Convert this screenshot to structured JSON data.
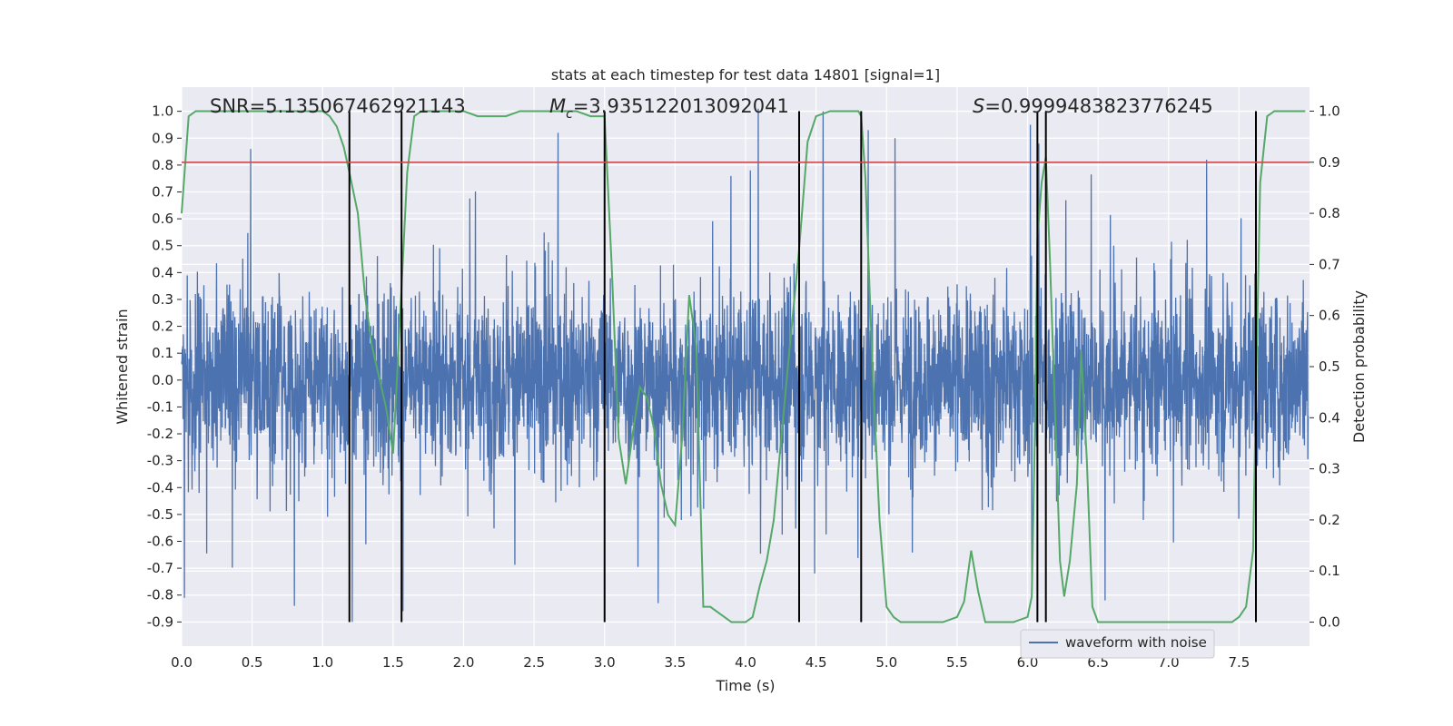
{
  "chart_data": {
    "type": "line",
    "title": "stats at each timestep for test data 14801 [signal=1]",
    "xlabel": "Time (s)",
    "ylabel": "Whitened strain",
    "y2label": "Detection probability",
    "xlim": [
      0.0,
      8.0
    ],
    "ylim": [
      -0.99,
      1.09
    ],
    "y2lim": [
      -0.047,
      1.047
    ],
    "xticks": [
      "0.0",
      "0.5",
      "1.0",
      "1.5",
      "2.0",
      "2.5",
      "3.0",
      "3.5",
      "4.0",
      "4.5",
      "5.0",
      "5.5",
      "6.0",
      "6.5",
      "7.0",
      "7.5"
    ],
    "yticks": [
      "1.0",
      "0.9",
      "0.8",
      "0.7",
      "0.6",
      "0.5",
      "0.4",
      "0.3",
      "0.2",
      "0.1",
      "0.0",
      "-0.1",
      "-0.2",
      "-0.3",
      "-0.4",
      "-0.5",
      "-0.6",
      "-0.7",
      "-0.8",
      "-0.9"
    ],
    "y2ticks": [
      "1.0",
      "0.9",
      "0.8",
      "0.7",
      "0.6",
      "0.5",
      "0.4",
      "0.3",
      "0.2",
      "0.1",
      "0.0"
    ],
    "grid": true,
    "legend": {
      "placement": "lower-right",
      "entries": [
        {
          "label": "waveform with noise",
          "color": "#4c72b0"
        }
      ]
    },
    "annotations": {
      "snr": "SNR=5.135067462921143",
      "mc_symbol": "M",
      "mc_sub": "c",
      "mc_value": "=3.935122013092041",
      "s_symbol": "S",
      "s_value": "=0.9999483823776245"
    },
    "threshold_line": {
      "y2": 0.9,
      "color": "#c44e52"
    },
    "vertical_lines_x": [
      1.19,
      1.56,
      3.0,
      4.38,
      4.82,
      6.07,
      6.13,
      7.62
    ],
    "waveform": {
      "name": "waveform with noise",
      "color": "#4c72b0",
      "envelope_peaks_top": [
        [
          0.49,
          0.86
        ],
        [
          2.67,
          0.92
        ],
        [
          4.09,
          1.01
        ],
        [
          4.55,
          1.0
        ],
        [
          4.87,
          0.93
        ],
        [
          5.06,
          0.9
        ],
        [
          6.02,
          0.95
        ],
        [
          6.08,
          0.88
        ],
        [
          7.27,
          0.82
        ]
      ],
      "envelope_peaks_bottom": [
        [
          0.02,
          -0.81
        ],
        [
          0.8,
          -0.84
        ],
        [
          1.21,
          -0.9
        ],
        [
          1.57,
          -0.86
        ],
        [
          3.38,
          -0.83
        ],
        [
          4.49,
          -0.72
        ],
        [
          6.03,
          -0.78
        ],
        [
          6.55,
          -0.82
        ]
      ]
    },
    "detection_probability": {
      "color": "#55a868",
      "x": [
        0.0,
        0.05,
        0.1,
        0.2,
        0.4,
        0.6,
        0.8,
        1.0,
        1.05,
        1.1,
        1.15,
        1.19,
        1.25,
        1.3,
        1.35,
        1.4,
        1.45,
        1.5,
        1.55,
        1.6,
        1.65,
        1.7,
        1.8,
        1.9,
        2.0,
        2.1,
        2.2,
        2.3,
        2.4,
        2.5,
        2.6,
        2.7,
        2.8,
        2.9,
        3.0,
        3.05,
        3.1,
        3.15,
        3.2,
        3.25,
        3.3,
        3.35,
        3.4,
        3.45,
        3.5,
        3.55,
        3.6,
        3.65,
        3.7,
        3.75,
        3.8,
        3.85,
        3.9,
        3.95,
        4.0,
        4.05,
        4.1,
        4.15,
        4.2,
        4.3,
        4.38,
        4.44,
        4.5,
        4.6,
        4.7,
        4.8,
        4.82,
        4.85,
        4.9,
        4.95,
        5.0,
        5.05,
        5.1,
        5.2,
        5.4,
        5.5,
        5.55,
        5.6,
        5.65,
        5.7,
        5.75,
        5.8,
        5.9,
        6.0,
        6.03,
        6.05,
        6.07,
        6.1,
        6.13,
        6.16,
        6.2,
        6.23,
        6.26,
        6.3,
        6.35,
        6.38,
        6.42,
        6.46,
        6.5,
        6.6,
        7.0,
        7.3,
        7.45,
        7.5,
        7.55,
        7.6,
        7.62,
        7.65,
        7.7,
        7.75,
        7.8,
        7.9,
        7.97
      ],
      "y": [
        0.8,
        0.99,
        1.0,
        1.0,
        1.0,
        1.0,
        1.0,
        1.0,
        0.99,
        0.97,
        0.93,
        0.88,
        0.8,
        0.64,
        0.54,
        0.48,
        0.42,
        0.33,
        0.6,
        0.88,
        0.99,
        1.0,
        1.0,
        1.0,
        1.0,
        0.99,
        0.99,
        0.99,
        1.0,
        1.0,
        1.0,
        1.0,
        1.0,
        0.99,
        0.99,
        0.7,
        0.36,
        0.27,
        0.37,
        0.46,
        0.44,
        0.38,
        0.27,
        0.21,
        0.19,
        0.36,
        0.64,
        0.54,
        0.03,
        0.03,
        0.02,
        0.01,
        0.0,
        0.0,
        0.0,
        0.01,
        0.07,
        0.12,
        0.2,
        0.5,
        0.73,
        0.94,
        0.99,
        1.0,
        1.0,
        1.0,
        0.99,
        0.87,
        0.5,
        0.2,
        0.03,
        0.01,
        0.0,
        0.0,
        0.0,
        0.01,
        0.04,
        0.14,
        0.06,
        0.0,
        0.0,
        0.0,
        0.0,
        0.01,
        0.05,
        0.34,
        0.75,
        0.86,
        0.91,
        0.7,
        0.37,
        0.12,
        0.05,
        0.12,
        0.27,
        0.53,
        0.32,
        0.03,
        0.0,
        0.0,
        0.0,
        0.0,
        0.0,
        0.01,
        0.03,
        0.14,
        0.45,
        0.86,
        0.99,
        1.0,
        1.0,
        1.0,
        1.0
      ]
    }
  }
}
